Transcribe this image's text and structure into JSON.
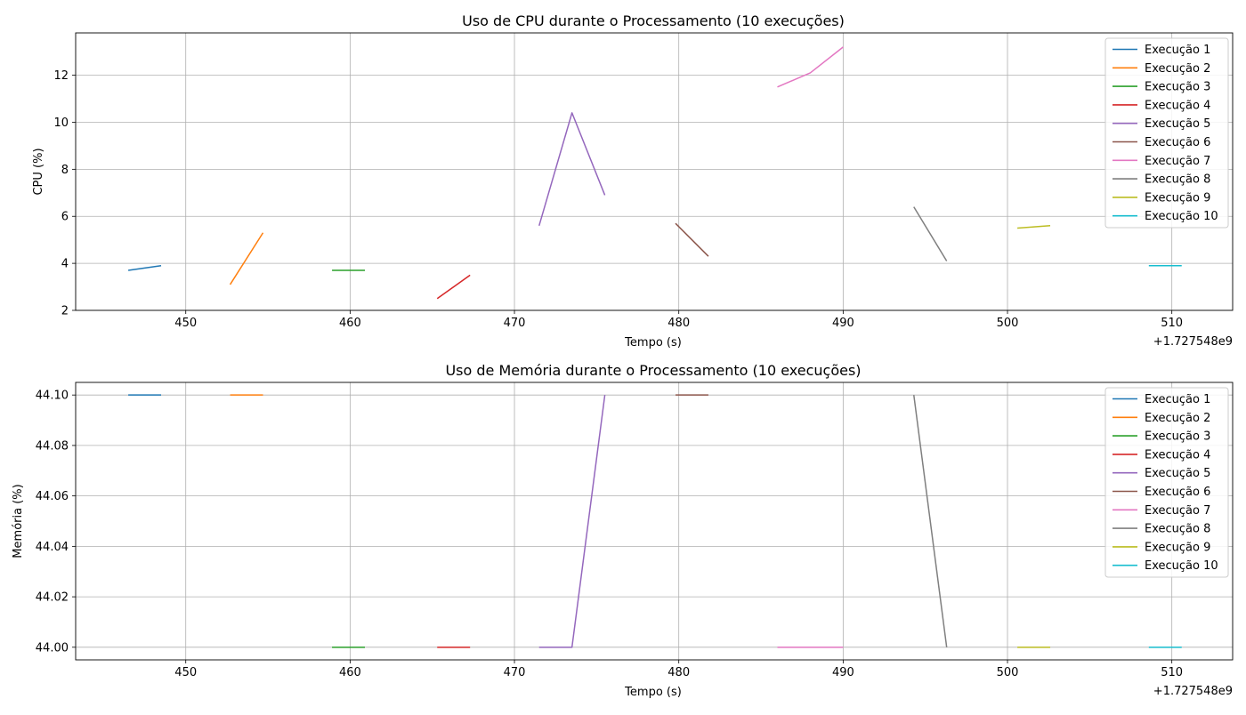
{
  "colors": [
    "#1f77b4",
    "#ff7f0e",
    "#2ca02c",
    "#d62728",
    "#9467bd",
    "#8c564b",
    "#e377c2",
    "#7f7f7f",
    "#bcbd22",
    "#17becf"
  ],
  "legend_entries": [
    "Execução 1",
    "Execução 2",
    "Execução 3",
    "Execução 4",
    "Execução 5",
    "Execução 6",
    "Execução 7",
    "Execução 8",
    "Execução 9",
    "Execução 10"
  ],
  "chart_data": [
    {
      "type": "line",
      "title": "Uso de CPU durante o Processamento (10 execuções)",
      "xlabel": "Tempo (s)",
      "ylabel": "CPU (%)",
      "x_offset_label": "+1.727548e9",
      "xlim": [
        443.3,
        513.7
      ],
      "ylim": [
        2,
        13.8
      ],
      "x_ticks": [
        450,
        460,
        470,
        480,
        490,
        500,
        510
      ],
      "y_ticks": [
        2,
        4,
        6,
        8,
        10,
        12
      ],
      "y_tick_labels": [
        "2",
        "4",
        "6",
        "8",
        "10",
        "12"
      ],
      "grid": true,
      "legend_position": "top-right",
      "series": [
        {
          "name": "Execução 1",
          "x": [
            446.5,
            448.5
          ],
          "y": [
            3.7,
            3.9
          ]
        },
        {
          "name": "Execução 2",
          "x": [
            452.7,
            454.7
          ],
          "y": [
            3.1,
            5.3
          ]
        },
        {
          "name": "Execução 3",
          "x": [
            458.9,
            460.9
          ],
          "y": [
            3.7,
            3.7
          ]
        },
        {
          "name": "Execução 4",
          "x": [
            465.3,
            467.3
          ],
          "y": [
            2.5,
            3.5
          ]
        },
        {
          "name": "Execução 5",
          "x": [
            471.5,
            473.5,
            475.5
          ],
          "y": [
            5.6,
            10.4,
            6.9
          ]
        },
        {
          "name": "Execução 6",
          "x": [
            479.8,
            481.8
          ],
          "y": [
            5.7,
            4.3
          ]
        },
        {
          "name": "Execução 7",
          "x": [
            486.0,
            488.0,
            490.0
          ],
          "y": [
            11.5,
            12.1,
            13.2
          ]
        },
        {
          "name": "Execução 8",
          "x": [
            494.3,
            496.3
          ],
          "y": [
            6.4,
            4.1
          ]
        },
        {
          "name": "Execução 9",
          "x": [
            500.6,
            502.6
          ],
          "y": [
            5.5,
            5.6
          ]
        },
        {
          "name": "Execução 10",
          "x": [
            508.6,
            510.6
          ],
          "y": [
            3.9,
            3.9
          ]
        }
      ]
    },
    {
      "type": "line",
      "title": "Uso de Memória durante o Processamento (10 execuções)",
      "xlabel": "Tempo (s)",
      "ylabel": "Memória (%)",
      "x_offset_label": "+1.727548e9",
      "xlim": [
        443.3,
        513.7
      ],
      "ylim": [
        43.995,
        44.105
      ],
      "x_ticks": [
        450,
        460,
        470,
        480,
        490,
        500,
        510
      ],
      "y_ticks": [
        44.0,
        44.02,
        44.04,
        44.06,
        44.08,
        44.1
      ],
      "y_tick_labels": [
        "44.00",
        "44.02",
        "44.04",
        "44.06",
        "44.08",
        "44.10"
      ],
      "grid": true,
      "legend_position": "top-right",
      "series": [
        {
          "name": "Execução 1",
          "x": [
            446.5,
            448.5
          ],
          "y": [
            44.1,
            44.1
          ]
        },
        {
          "name": "Execução 2",
          "x": [
            452.7,
            454.7
          ],
          "y": [
            44.1,
            44.1
          ]
        },
        {
          "name": "Execução 3",
          "x": [
            458.9,
            460.9
          ],
          "y": [
            44.0,
            44.0
          ]
        },
        {
          "name": "Execução 4",
          "x": [
            465.3,
            467.3
          ],
          "y": [
            44.0,
            44.0
          ]
        },
        {
          "name": "Execução 5",
          "x": [
            471.5,
            473.5,
            475.5
          ],
          "y": [
            44.0,
            44.0,
            44.1
          ]
        },
        {
          "name": "Execução 6",
          "x": [
            479.8,
            481.8
          ],
          "y": [
            44.1,
            44.1
          ]
        },
        {
          "name": "Execução 7",
          "x": [
            486.0,
            488.0,
            490.0
          ],
          "y": [
            44.0,
            44.0,
            44.0
          ]
        },
        {
          "name": "Execução 8",
          "x": [
            494.3,
            496.3
          ],
          "y": [
            44.1,
            44.0
          ]
        },
        {
          "name": "Execução 9",
          "x": [
            500.6,
            502.6
          ],
          "y": [
            44.0,
            44.0
          ]
        },
        {
          "name": "Execução 10",
          "x": [
            508.6,
            510.6
          ],
          "y": [
            44.0,
            44.0
          ]
        }
      ]
    }
  ]
}
